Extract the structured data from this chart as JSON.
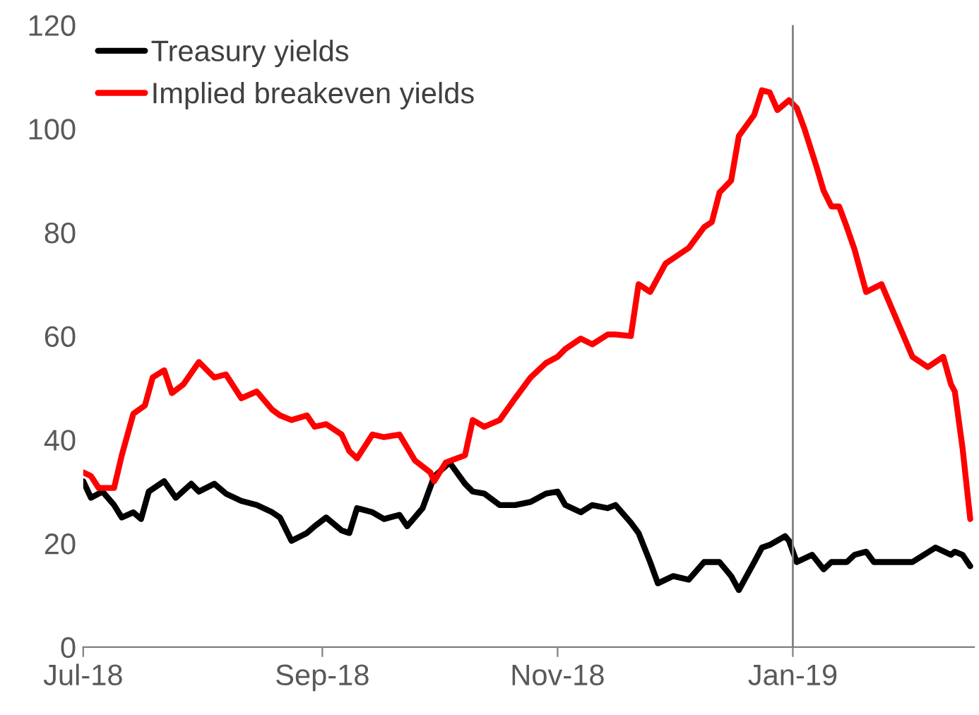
{
  "chart_data": {
    "type": "line",
    "series": [
      {
        "name": "Treasury yields",
        "color": "#000000",
        "x": [
          "2018-07-01",
          "2018-07-03",
          "2018-07-06",
          "2018-07-09",
          "2018-07-11",
          "2018-07-14",
          "2018-07-16",
          "2018-07-18",
          "2018-07-22",
          "2018-07-25",
          "2018-07-29",
          "2018-07-31",
          "2018-08-04",
          "2018-08-07",
          "2018-08-11",
          "2018-08-15",
          "2018-08-19",
          "2018-08-21",
          "2018-08-24",
          "2018-08-28",
          "2018-08-30",
          "2018-09-02",
          "2018-09-06",
          "2018-09-08",
          "2018-09-10",
          "2018-09-14",
          "2018-09-17",
          "2018-09-21",
          "2018-09-23",
          "2018-09-27",
          "2018-09-30",
          "2018-10-04",
          "2018-10-08",
          "2018-10-10",
          "2018-10-13",
          "2018-10-17",
          "2018-10-21",
          "2018-10-25",
          "2018-10-29",
          "2018-11-01",
          "2018-11-03",
          "2018-11-07",
          "2018-11-10",
          "2018-11-14",
          "2018-11-16",
          "2018-11-20",
          "2018-11-22",
          "2018-11-25",
          "2018-11-27",
          "2018-12-01",
          "2018-12-05",
          "2018-12-09",
          "2018-12-13",
          "2018-12-16",
          "2018-12-18",
          "2018-12-22",
          "2018-12-24",
          "2018-12-26",
          "2018-12-30",
          "2018-12-31",
          "2019-01-02",
          "2019-01-06",
          "2019-01-09",
          "2019-01-11",
          "2019-01-15",
          "2019-01-17",
          "2019-01-20",
          "2019-01-22",
          "2019-01-28",
          "2019-02-01",
          "2019-02-04",
          "2019-02-07",
          "2019-02-11",
          "2019-02-12",
          "2019-02-14",
          "2019-02-16"
        ],
        "values": [
          32,
          28.8,
          30,
          27.4,
          25,
          26,
          24.7,
          30,
          32,
          28.8,
          31.5,
          30,
          31.5,
          29.6,
          28.2,
          27.4,
          26,
          25,
          20.5,
          22,
          23.3,
          25,
          22.5,
          22,
          26.8,
          26,
          24.7,
          25.5,
          23.3,
          26.8,
          32.9,
          35.6,
          31.5,
          30,
          29.6,
          27.4,
          27.4,
          28,
          29.6,
          30,
          27.4,
          26,
          27.4,
          26.8,
          27.4,
          24,
          22,
          16.4,
          12.3,
          13.7,
          13,
          16.4,
          16.4,
          13.7,
          11,
          16.4,
          19.2,
          19.7,
          21.4,
          20.5,
          16.4,
          17.8,
          15,
          16.4,
          16.4,
          17.8,
          18.4,
          16.4,
          16.4,
          16.4,
          17.8,
          19.2,
          17.8,
          18.4,
          17.8,
          15.6
        ]
      },
      {
        "name": "Implied breakeven yields",
        "color": "#ff0000",
        "x": [
          "2018-07-01",
          "2018-07-03",
          "2018-07-05",
          "2018-07-09",
          "2018-07-11",
          "2018-07-14",
          "2018-07-17",
          "2018-07-19",
          "2018-07-22",
          "2018-07-24",
          "2018-07-27",
          "2018-07-31",
          "2018-08-04",
          "2018-08-07",
          "2018-08-11",
          "2018-08-15",
          "2018-08-19",
          "2018-08-21",
          "2018-08-24",
          "2018-08-28",
          "2018-08-30",
          "2018-09-02",
          "2018-09-06",
          "2018-09-08",
          "2018-09-10",
          "2018-09-14",
          "2018-09-17",
          "2018-09-21",
          "2018-09-25",
          "2018-09-29",
          "2018-09-30",
          "2018-10-03",
          "2018-10-08",
          "2018-10-10",
          "2018-10-13",
          "2018-10-17",
          "2018-10-21",
          "2018-10-25",
          "2018-10-29",
          "2018-11-01",
          "2018-11-03",
          "2018-11-07",
          "2018-11-10",
          "2018-11-14",
          "2018-11-16",
          "2018-11-20",
          "2018-11-22",
          "2018-11-25",
          "2018-11-29",
          "2018-12-01",
          "2018-12-05",
          "2018-12-09",
          "2018-12-11",
          "2018-12-13",
          "2018-12-16",
          "2018-12-18",
          "2018-12-22",
          "2018-12-24",
          "2018-12-26",
          "2018-12-28",
          "2018-12-31",
          "2019-01-02",
          "2019-01-04",
          "2019-01-07",
          "2019-01-09",
          "2019-01-11",
          "2019-01-13",
          "2019-01-15",
          "2019-01-17",
          "2019-01-20",
          "2019-01-24",
          "2019-01-28",
          "2019-02-01",
          "2019-02-05",
          "2019-02-09",
          "2019-02-11",
          "2019-02-12",
          "2019-02-14",
          "2019-02-16"
        ],
        "values": [
          33.7,
          33,
          30.7,
          30.7,
          37,
          45,
          46.6,
          52,
          53.4,
          49,
          50.7,
          55,
          52,
          52.6,
          48,
          49.3,
          45.8,
          44.7,
          43.8,
          44.7,
          42.5,
          43,
          41,
          37.8,
          36.4,
          41,
          40.5,
          41,
          36,
          33.7,
          32,
          35.6,
          37,
          43.8,
          42.5,
          43.8,
          48,
          52,
          54.8,
          56,
          57.5,
          59.5,
          58.4,
          60.3,
          60.3,
          60,
          70,
          68.5,
          74,
          75,
          77,
          81,
          82,
          87.7,
          90,
          98.6,
          102.7,
          107.4,
          107,
          103.6,
          105.5,
          104,
          100,
          93,
          88,
          85,
          85,
          81,
          76.7,
          68.5,
          70,
          63,
          56,
          54,
          56,
          50.7,
          49.3,
          38.4,
          24.7
        ]
      }
    ],
    "xlim": [
      "2018-07-01",
      "2019-02-17"
    ],
    "xticks": [
      {
        "value": "2018-07-01",
        "label": "Jul-18"
      },
      {
        "value": "2018-09-01",
        "label": "Sep-18"
      },
      {
        "value": "2018-11-01",
        "label": "Nov-18"
      },
      {
        "value": "2019-01-01",
        "label": "Jan-19"
      }
    ],
    "ylim": [
      0,
      120
    ],
    "yticks": [
      0,
      20,
      40,
      60,
      80,
      100,
      120
    ],
    "ref_lines": [
      {
        "axis": "x",
        "value": "2019-01-01",
        "color": "#808080"
      }
    ],
    "legend": "top left",
    "grid": false,
    "line_style": "solid",
    "marker": "none"
  }
}
